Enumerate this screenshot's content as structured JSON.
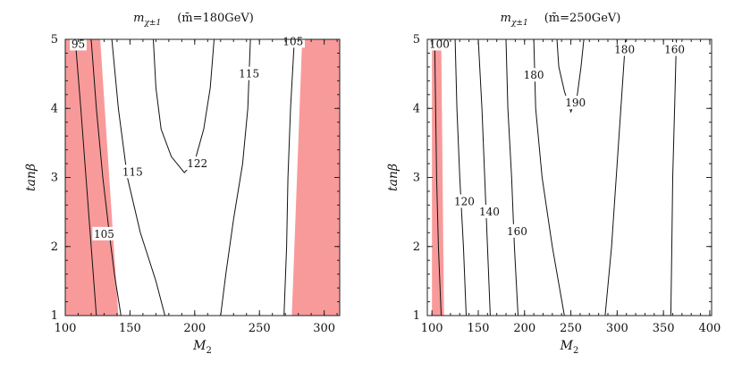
{
  "chart_data": [
    {
      "type": "contour",
      "title": "m_χ±1 (m̄=180GeV)",
      "title_parts": {
        "symbol": "m",
        "subscript": "χ±1",
        "param": "(m̄=180GeV)"
      },
      "xlabel": "M2",
      "ylabel": "tanβ",
      "xlim": [
        100,
        312
      ],
      "ylim": [
        1,
        5
      ],
      "xticks": [
        100,
        150,
        200,
        250,
        300
      ],
      "yticks": [
        1,
        2,
        3,
        4,
        5
      ],
      "shaded_regions": [
        {
          "color": "#f99a9a",
          "polygon": [
            [
              100,
              1
            ],
            [
              141,
              1
            ],
            [
              127,
              5
            ],
            [
              100,
              5
            ]
          ]
        },
        {
          "color": "#f99a9a",
          "polygon": [
            [
              275,
              1
            ],
            [
              312,
              1
            ],
            [
              312,
              5
            ],
            [
              283,
              5
            ]
          ]
        }
      ],
      "contours": [
        {
          "level": "95",
          "points": [
            [
              124,
              1
            ],
            [
              120,
              2
            ],
            [
              116,
              3
            ],
            [
              112,
              4
            ],
            [
              108,
              4.93
            ]
          ],
          "label_at": [
            110,
            4.93
          ]
        },
        {
          "level": "105",
          "points": [
            [
              143,
              1
            ],
            [
              138,
              1.6
            ],
            [
              134,
              2.2
            ],
            [
              129,
              3
            ],
            [
              124,
              4
            ],
            [
              120,
              5
            ]
          ],
          "label_at": [
            130,
            2.18
          ]
        },
        {
          "level": "115",
          "points": [
            [
              177,
              1
            ],
            [
              170,
              1.5
            ],
            [
              158,
              2.2
            ],
            [
              148,
              3
            ],
            [
              141,
              4
            ],
            [
              136,
              5
            ]
          ],
          "label_at": [
            152,
            3.08
          ]
        },
        {
          "level": "122",
          "points": [
            [
              168,
              5
            ],
            [
              170,
              4.3
            ],
            [
              174,
              3.7
            ],
            [
              182,
              3.3
            ],
            [
              192,
              3.07
            ],
            [
              196,
              3.15
            ],
            [
              201,
              3.3
            ],
            [
              207,
              3.7
            ],
            [
              212,
              4.3
            ],
            [
              215,
              5
            ]
          ],
          "label_at": [
            202,
            3.2
          ]
        },
        {
          "level": "115",
          "points": [
            [
              220,
              1
            ],
            [
              224,
              1.6
            ],
            [
              230,
              2.4
            ],
            [
              237,
              3.2
            ],
            [
              241,
              4
            ],
            [
              243,
              5
            ]
          ],
          "label_at": [
            242,
            4.5
          ]
        },
        {
          "level": "105",
          "points": [
            [
              269,
              1
            ],
            [
              271,
              2
            ],
            [
              272,
              3
            ],
            [
              274,
              4
            ],
            [
              277,
              5
            ]
          ],
          "label_at": [
            276,
            4.97
          ]
        }
      ]
    },
    {
      "type": "contour",
      "title": "m_χ±1 (m̄=250GeV)",
      "title_parts": {
        "symbol": "m",
        "subscript": "χ±1",
        "param": "(m̄=250GeV)"
      },
      "xlabel": "M2",
      "ylabel": "tanβ",
      "xlim": [
        95,
        402
      ],
      "ylim": [
        1,
        5
      ],
      "xticks": [
        100,
        150,
        200,
        250,
        300,
        350,
        400
      ],
      "yticks": [
        1,
        2,
        3,
        4,
        5
      ],
      "shaded_regions": [
        {
          "color": "#f99a9a",
          "polygon": [
            [
              100,
              1
            ],
            [
              113,
              1
            ],
            [
              110,
              5
            ],
            [
              100,
              5
            ]
          ]
        }
      ],
      "contours": [
        {
          "level": "100",
          "points": [
            [
              110,
              1
            ],
            [
              107,
              2
            ],
            [
              105,
              3
            ],
            [
              104,
              4
            ],
            [
              103,
              4.92
            ]
          ],
          "label_at": [
            108,
            4.93
          ]
        },
        {
          "level": "120",
          "points": [
            [
              137,
              1
            ],
            [
              134,
              2
            ],
            [
              130,
              3
            ],
            [
              127,
              4
            ],
            [
              125,
              5
            ]
          ],
          "label_at": [
            135,
            2.65
          ]
        },
        {
          "level": "140",
          "points": [
            [
              163,
              1
            ],
            [
              160,
              2
            ],
            [
              157,
              3
            ],
            [
              154,
              4
            ],
            [
              150,
              5
            ]
          ],
          "label_at": [
            162,
            2.5
          ]
        },
        {
          "level": "160",
          "points": [
            [
              193,
              1
            ],
            [
              189,
              2
            ],
            [
              186,
              3
            ],
            [
              182,
              4
            ],
            [
              180,
              5
            ]
          ],
          "label_at": [
            192,
            2.22
          ]
        },
        {
          "level": "180",
          "points": [
            [
              243,
              1
            ],
            [
              230,
              2
            ],
            [
              219,
              3
            ],
            [
              212,
              4
            ],
            [
              210,
              5
            ]
          ],
          "label_at": [
            210,
            4.48
          ]
        },
        {
          "level": "190",
          "points": [
            [
              235,
              5
            ],
            [
              237,
              4.6
            ],
            [
              243,
              4.25
            ],
            [
              250,
              3.95
            ],
            [
              257,
              4.2
            ],
            [
              261,
              4.6
            ],
            [
              264,
              5
            ]
          ],
          "label_at": [
            255,
            4.08
          ]
        },
        {
          "level": "180",
          "points": [
            [
              287,
              1
            ],
            [
              294,
              2
            ],
            [
              299,
              3
            ],
            [
              304,
              4
            ],
            [
              309,
              5
            ]
          ],
          "label_at": [
            308,
            4.85
          ]
        },
        {
          "level": "160",
          "points": [
            [
              358,
              1
            ],
            [
              359,
              2
            ],
            [
              360,
              3
            ],
            [
              362,
              4
            ],
            [
              364,
              5
            ]
          ],
          "label_at": [
            362,
            4.85
          ]
        }
      ]
    }
  ]
}
